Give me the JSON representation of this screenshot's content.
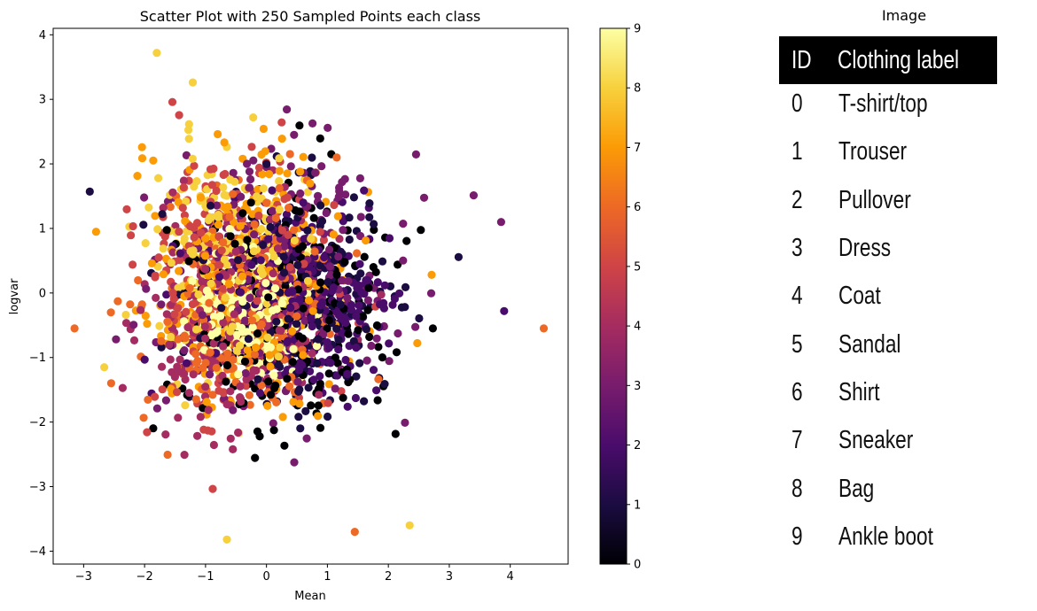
{
  "chart_data": {
    "type": "scatter",
    "title": "Scatter Plot with 250 Sampled Points each class",
    "xlabel": "Mean",
    "ylabel": "logvar",
    "xlim": [
      -3.5,
      4.95
    ],
    "ylim": [
      -4.2,
      4.1
    ],
    "x_ticks": [
      "−3",
      "−2",
      "−1",
      "0",
      "1",
      "2",
      "3",
      "4"
    ],
    "y_ticks": [
      "−4",
      "−3",
      "−2",
      "−1",
      "0",
      "1",
      "2",
      "3",
      "4"
    ],
    "colormap": "inferno",
    "colorbar": {
      "min": 0,
      "max": 9,
      "ticks": [
        "0",
        "1",
        "2",
        "3",
        "4",
        "5",
        "6",
        "7",
        "8",
        "9"
      ]
    },
    "grid": false,
    "points_per_class": 250,
    "classes": 10,
    "class_clusters": [
      {
        "class": 0,
        "center": [
          0.4,
          -0.3
        ],
        "spread": [
          1.2,
          1.2
        ]
      },
      {
        "class": 1,
        "center": [
          0.5,
          -0.1
        ],
        "spread": [
          1.2,
          1.1
        ]
      },
      {
        "class": 2,
        "center": [
          0.6,
          -0.2
        ],
        "spread": [
          1.1,
          1.0
        ]
      },
      {
        "class": 3,
        "center": [
          0.2,
          0.3
        ],
        "spread": [
          1.3,
          1.3
        ]
      },
      {
        "class": 4,
        "center": [
          -0.5,
          -0.5
        ],
        "spread": [
          1.0,
          1.1
        ]
      },
      {
        "class": 5,
        "center": [
          -0.6,
          0.2
        ],
        "spread": [
          1.2,
          1.3
        ]
      },
      {
        "class": 6,
        "center": [
          -0.4,
          -0.3
        ],
        "spread": [
          1.1,
          1.1
        ]
      },
      {
        "class": 7,
        "center": [
          -0.3,
          0.2
        ],
        "spread": [
          1.2,
          1.3
        ]
      },
      {
        "class": 8,
        "center": [
          -0.5,
          0.4
        ],
        "spread": [
          1.0,
          1.2
        ]
      },
      {
        "class": 9,
        "center": [
          -0.3,
          -0.3
        ],
        "spread": [
          0.6,
          0.6
        ]
      }
    ],
    "outliers": [
      {
        "x": 4.55,
        "y": -0.55,
        "class": 6
      },
      {
        "x": -3.15,
        "y": -0.55,
        "class": 6
      },
      {
        "x": -2.9,
        "y": 1.57,
        "class": 1
      },
      {
        "x": -1.8,
        "y": 3.72,
        "class": 8
      },
      {
        "x": -0.65,
        "y": -3.82,
        "class": 8
      },
      {
        "x": 1.45,
        "y": -3.7,
        "class": 6
      },
      {
        "x": 2.35,
        "y": -3.6,
        "class": 8
      },
      {
        "x": 3.9,
        "y": -0.28,
        "class": 2
      },
      {
        "x": 3.85,
        "y": 1.1,
        "class": 3
      }
    ]
  },
  "legend_image": {
    "title": "Image",
    "header": {
      "id": "ID",
      "label": "Clothing label"
    },
    "rows": [
      {
        "id": "0",
        "label": "T-shirt/top"
      },
      {
        "id": "1",
        "label": "Trouser"
      },
      {
        "id": "2",
        "label": "Pullover"
      },
      {
        "id": "3",
        "label": "Dress"
      },
      {
        "id": "4",
        "label": "Coat"
      },
      {
        "id": "5",
        "label": "Sandal"
      },
      {
        "id": "6",
        "label": "Shirt"
      },
      {
        "id": "7",
        "label": "Sneaker"
      },
      {
        "id": "8",
        "label": "Bag"
      },
      {
        "id": "9",
        "label": "Ankle boot"
      }
    ]
  }
}
